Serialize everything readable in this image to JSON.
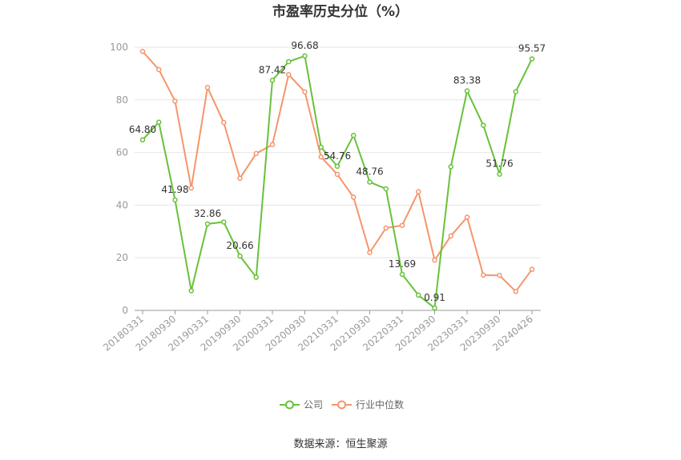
{
  "chart_data": {
    "type": "line",
    "title": "市盈率历史分位（%）",
    "x_tick_labels": [
      "20180331",
      "20180930",
      "20190331",
      "20190930",
      "20200331",
      "20200930",
      "20210331",
      "20210930",
      "20220331",
      "20220930",
      "20230331",
      "20230930",
      "20240426"
    ],
    "y_ticks": [
      0,
      20,
      40,
      60,
      80,
      100
    ],
    "ylim": [
      0,
      100
    ],
    "grid": true,
    "legend_position": "bottom-center",
    "series": [
      {
        "name": "公司",
        "color": "#67c23a",
        "values": [
          64.8,
          71.5,
          41.98,
          7.5,
          32.86,
          33.6,
          20.66,
          12.6,
          87.42,
          94.5,
          96.68,
          62.0,
          54.76,
          66.5,
          48.76,
          46.2,
          13.69,
          5.8,
          0.91,
          54.6,
          83.38,
          70.3,
          51.76,
          83.1,
          95.57
        ],
        "data_labels": [
          {
            "index": 0,
            "text": "64.80"
          },
          {
            "index": 2,
            "text": "41.98"
          },
          {
            "index": 4,
            "text": "32.86"
          },
          {
            "index": 6,
            "text": "20.66"
          },
          {
            "index": 8,
            "text": "87.42"
          },
          {
            "index": 10,
            "text": "96.68"
          },
          {
            "index": 12,
            "text": "54.76"
          },
          {
            "index": 14,
            "text": "48.76"
          },
          {
            "index": 16,
            "text": "13.69"
          },
          {
            "index": 18,
            "text": "0.91"
          },
          {
            "index": 20,
            "text": "83.38"
          },
          {
            "index": 22,
            "text": "51.76"
          },
          {
            "index": 24,
            "text": "95.57"
          }
        ]
      },
      {
        "name": "行业中位数",
        "color": "#f5956b",
        "values": [
          98.4,
          91.5,
          79.5,
          46.5,
          84.7,
          71.4,
          50.2,
          59.6,
          63.0,
          89.6,
          83.0,
          58.3,
          51.7,
          43.0,
          22.0,
          31.3,
          32.3,
          45.1,
          19.1,
          28.3,
          35.4,
          13.4,
          13.3,
          7.2,
          15.6
        ]
      }
    ]
  },
  "source": "数据来源：恒生聚源"
}
